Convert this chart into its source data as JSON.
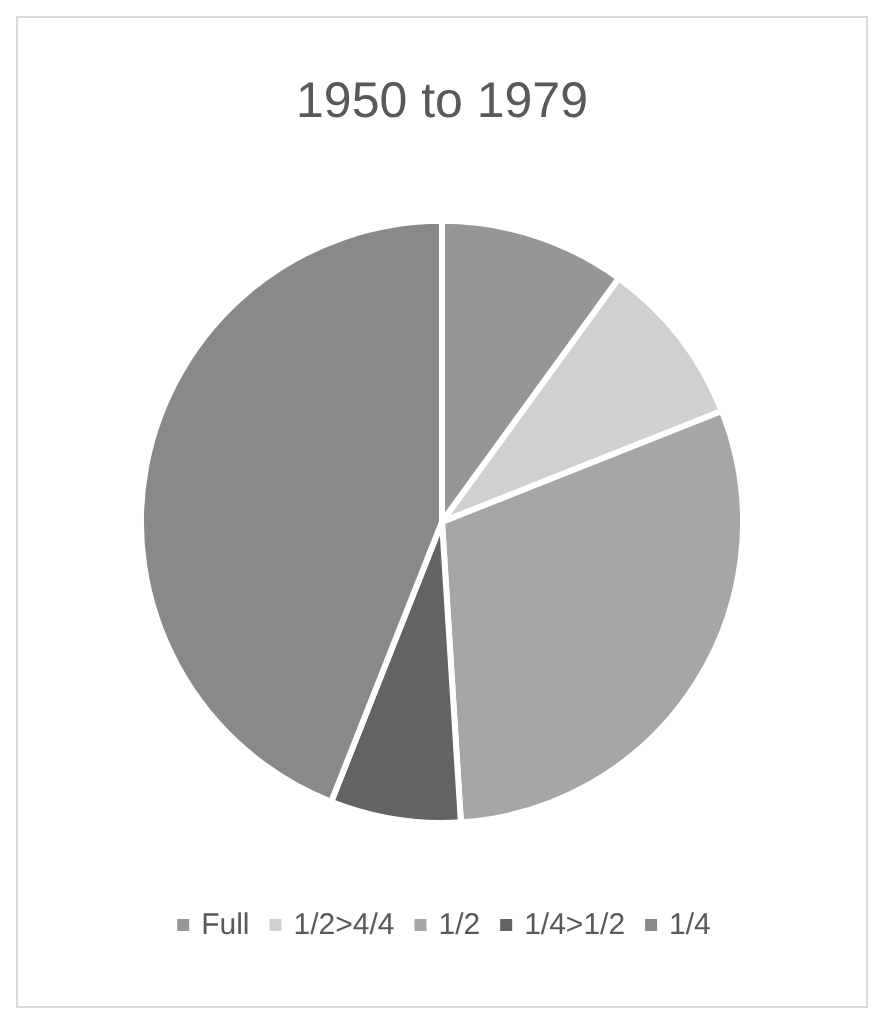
{
  "chart_data": {
    "type": "pie",
    "title": "1950 to 1979",
    "categories": [
      "Full",
      "1/2>4/4",
      "1/2",
      "1/4>1/2",
      "1/4"
    ],
    "values": [
      10,
      9,
      30,
      7,
      44
    ],
    "colors": [
      "#969696",
      "#d0d0d0",
      "#a6a6a6",
      "#636363",
      "#898989"
    ],
    "legend": "bottom"
  }
}
